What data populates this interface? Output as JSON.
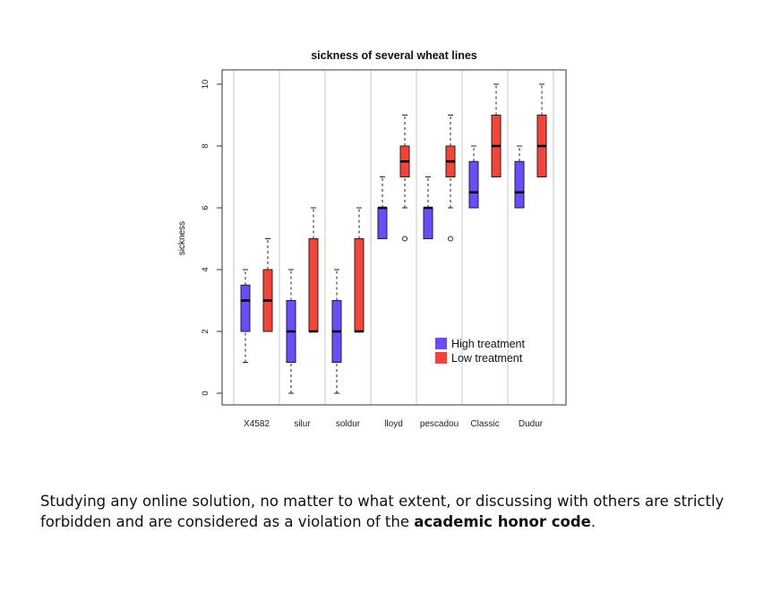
{
  "chart_data": {
    "type": "box",
    "title": "sickness of several wheat lines",
    "xlabel": "",
    "ylabel": "sickness",
    "ylim": [
      0,
      10
    ],
    "y_ticks": [
      "0",
      "2",
      "4",
      "6",
      "8",
      "10"
    ],
    "categories": [
      "X4582",
      "silur",
      "soldur",
      "lloyd",
      "pescadou",
      "Classic",
      "Dudur"
    ],
    "legend_position": "inside-bottom-right",
    "series": [
      {
        "name": "High treatment",
        "color": "#6a4cff",
        "boxes": [
          {
            "min": 1,
            "q1": 2,
            "median": 3,
            "q3": 3.5,
            "max": 4,
            "outliers": []
          },
          {
            "min": 0,
            "q1": 1,
            "median": 2,
            "q3": 3,
            "max": 4,
            "outliers": []
          },
          {
            "min": 0,
            "q1": 1,
            "median": 2,
            "q3": 3,
            "max": 4,
            "outliers": []
          },
          {
            "min": 5,
            "q1": 5,
            "median": 6,
            "q3": 6,
            "max": 7,
            "outliers": []
          },
          {
            "min": 5,
            "q1": 5,
            "median": 6,
            "q3": 6,
            "max": 7,
            "outliers": []
          },
          {
            "min": 6,
            "q1": 6,
            "median": 6.5,
            "q3": 7.5,
            "max": 8,
            "outliers": []
          },
          {
            "min": 6,
            "q1": 6,
            "median": 6.5,
            "q3": 7.5,
            "max": 8,
            "outliers": []
          }
        ]
      },
      {
        "name": "Low treatment",
        "color": "#f4443a",
        "boxes": [
          {
            "min": 2,
            "q1": 2,
            "median": 3,
            "q3": 4,
            "max": 5,
            "outliers": []
          },
          {
            "min": 2,
            "q1": 2,
            "median": 2,
            "q3": 5,
            "max": 6,
            "outliers": []
          },
          {
            "min": 2,
            "q1": 2,
            "median": 2,
            "q3": 5,
            "max": 6,
            "outliers": []
          },
          {
            "min": 6,
            "q1": 7,
            "median": 7.5,
            "q3": 8,
            "max": 9,
            "outliers": [
              5
            ]
          },
          {
            "min": 6,
            "q1": 7,
            "median": 7.5,
            "q3": 8,
            "max": 9,
            "outliers": [
              5
            ]
          },
          {
            "min": 7,
            "q1": 7,
            "median": 8,
            "q3": 9,
            "max": 10,
            "outliers": []
          },
          {
            "min": 7,
            "q1": 7,
            "median": 8,
            "q3": 9,
            "max": 10,
            "outliers": []
          }
        ]
      }
    ]
  },
  "footnote": {
    "text_before": "Studying any online solution, no matter to what extent, or discussing with others are strictly forbidden and are considered as a violation of the ",
    "emphasis": "academic honor code",
    "text_after": "."
  }
}
